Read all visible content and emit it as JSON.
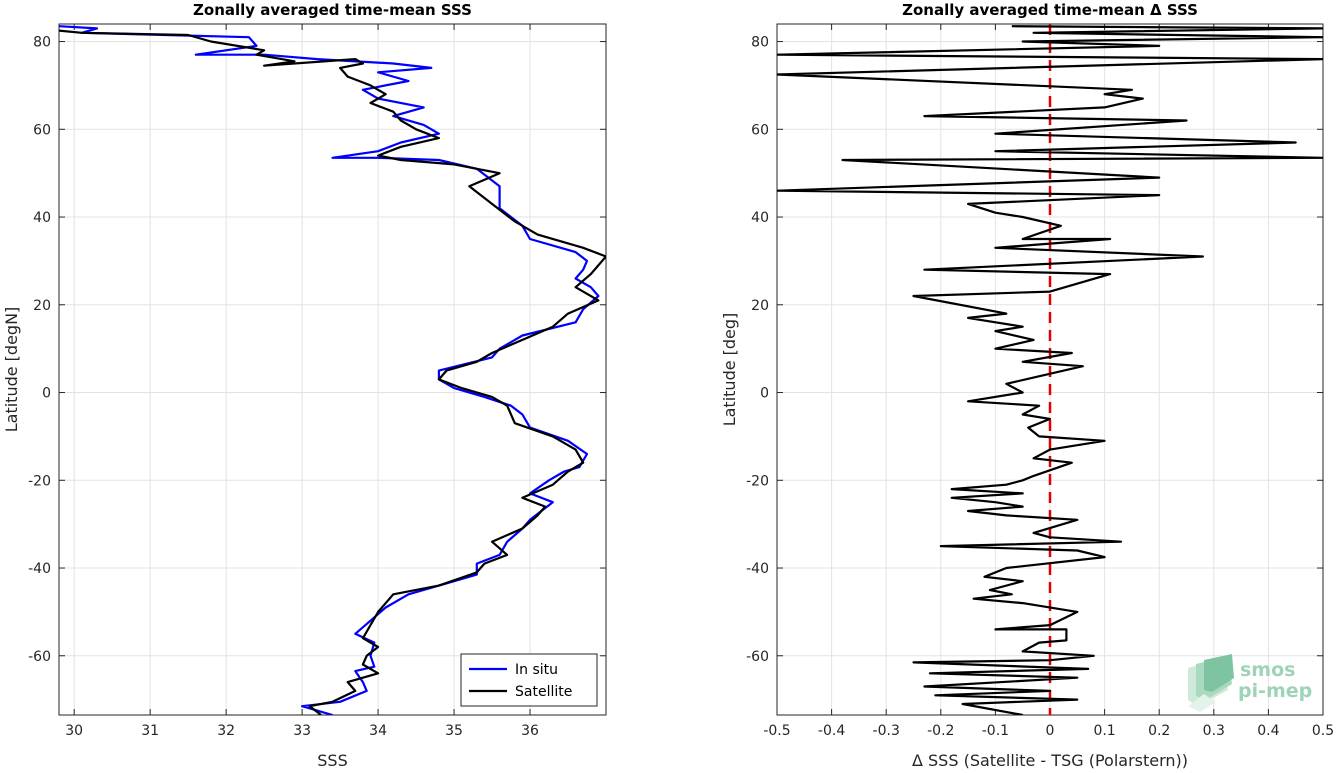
{
  "chart_data": [
    {
      "type": "line",
      "title": "Zonally averaged time-mean SSS",
      "xlabel": "SSS",
      "ylabel": "Latitude [degN]",
      "xlim": [
        29.8,
        37.0
      ],
      "ylim": [
        -73.5,
        84
      ],
      "xticks": [
        30,
        31,
        32,
        33,
        34,
        35,
        36
      ],
      "yticks": [
        80,
        60,
        40,
        20,
        0,
        -20,
        -40,
        -60
      ],
      "grid": true,
      "legend_position": "bottom-right",
      "series": [
        {
          "name": "In situ",
          "color": "#0000ff",
          "points": [
            [
              33.4,
              -73.5
            ],
            [
              33.0,
              -71.5
            ],
            [
              33.5,
              -70.5
            ],
            [
              33.85,
              -68
            ],
            [
              33.8,
              -66
            ],
            [
              33.7,
              -63.5
            ],
            [
              33.95,
              -62.5
            ],
            [
              33.9,
              -60
            ],
            [
              33.95,
              -57
            ],
            [
              33.7,
              -55
            ],
            [
              33.9,
              -52
            ],
            [
              34.1,
              -49
            ],
            [
              34.4,
              -46
            ],
            [
              35.0,
              -43
            ],
            [
              35.3,
              -41.5
            ],
            [
              35.3,
              -39
            ],
            [
              35.6,
              -37
            ],
            [
              35.7,
              -34
            ],
            [
              35.9,
              -31
            ],
            [
              36.0,
              -29
            ],
            [
              36.3,
              -25
            ],
            [
              36.0,
              -23
            ],
            [
              36.25,
              -20
            ],
            [
              36.45,
              -18
            ],
            [
              36.65,
              -17
            ],
            [
              36.75,
              -14
            ],
            [
              36.5,
              -11
            ],
            [
              36.0,
              -8
            ],
            [
              35.9,
              -5
            ],
            [
              35.75,
              -3
            ],
            [
              35.4,
              -1
            ],
            [
              35.0,
              1
            ],
            [
              34.8,
              3
            ],
            [
              34.8,
              5
            ],
            [
              35.5,
              8
            ],
            [
              35.6,
              10
            ],
            [
              35.9,
              13
            ],
            [
              36.6,
              16
            ],
            [
              36.7,
              19
            ],
            [
              36.9,
              22
            ],
            [
              36.8,
              24
            ],
            [
              36.6,
              26
            ],
            [
              36.7,
              28
            ],
            [
              36.75,
              30
            ],
            [
              36.6,
              32
            ],
            [
              36.0,
              35
            ],
            [
              35.9,
              38
            ],
            [
              35.6,
              42
            ],
            [
              35.6,
              47
            ],
            [
              35.3,
              51
            ],
            [
              34.8,
              53
            ],
            [
              34.0,
              53.5
            ],
            [
              33.4,
              53.5
            ],
            [
              34.0,
              55
            ],
            [
              34.3,
              57
            ],
            [
              34.8,
              59
            ],
            [
              34.6,
              61
            ],
            [
              34.2,
              63
            ],
            [
              34.6,
              65
            ],
            [
              34.0,
              67
            ],
            [
              33.8,
              69
            ],
            [
              34.4,
              71
            ],
            [
              34.0,
              73
            ],
            [
              34.7,
              74
            ],
            [
              34.2,
              75
            ],
            [
              33.2,
              76
            ],
            [
              32.5,
              77
            ],
            [
              31.6,
              77
            ],
            [
              32.4,
              79
            ],
            [
              32.3,
              81
            ],
            [
              31.2,
              81.5
            ],
            [
              30.1,
              82
            ],
            [
              30.3,
              83
            ],
            [
              29.8,
              83.5
            ]
          ]
        },
        {
          "name": "Satellite",
          "color": "#000000",
          "points": [
            [
              33.25,
              -73.5
            ],
            [
              33.1,
              -71.5
            ],
            [
              33.4,
              -70.5
            ],
            [
              33.7,
              -68
            ],
            [
              33.6,
              -66
            ],
            [
              34.0,
              -64
            ],
            [
              33.8,
              -62
            ],
            [
              33.85,
              -60
            ],
            [
              34.0,
              -58
            ],
            [
              33.8,
              -56
            ],
            [
              33.9,
              -53
            ],
            [
              34.0,
              -50
            ],
            [
              34.2,
              -46
            ],
            [
              34.8,
              -44
            ],
            [
              35.3,
              -41
            ],
            [
              35.4,
              -39
            ],
            [
              35.7,
              -37
            ],
            [
              35.5,
              -34
            ],
            [
              35.9,
              -31
            ],
            [
              36.1,
              -28
            ],
            [
              36.2,
              -26
            ],
            [
              35.9,
              -24
            ],
            [
              36.3,
              -21
            ],
            [
              36.5,
              -18
            ],
            [
              36.7,
              -16
            ],
            [
              36.6,
              -13
            ],
            [
              36.3,
              -10
            ],
            [
              35.8,
              -7
            ],
            [
              35.7,
              -3
            ],
            [
              35.5,
              -1
            ],
            [
              35.1,
              1
            ],
            [
              34.8,
              3
            ],
            [
              34.9,
              5
            ],
            [
              35.3,
              7
            ],
            [
              35.5,
              9
            ],
            [
              35.9,
              12
            ],
            [
              36.3,
              15
            ],
            [
              36.5,
              18
            ],
            [
              36.9,
              21
            ],
            [
              36.6,
              24
            ],
            [
              36.8,
              27
            ],
            [
              37.0,
              31
            ],
            [
              36.7,
              33
            ],
            [
              36.1,
              36
            ],
            [
              35.8,
              39
            ],
            [
              35.5,
              43
            ],
            [
              35.2,
              47
            ],
            [
              35.6,
              50
            ],
            [
              35.0,
              52
            ],
            [
              34.3,
              53
            ],
            [
              34.0,
              54
            ],
            [
              34.3,
              56
            ],
            [
              34.8,
              58
            ],
            [
              34.5,
              60
            ],
            [
              34.3,
              62
            ],
            [
              34.2,
              64
            ],
            [
              33.9,
              66
            ],
            [
              34.1,
              68
            ],
            [
              33.9,
              70
            ],
            [
              33.6,
              72
            ],
            [
              33.5,
              74
            ],
            [
              33.8,
              75
            ],
            [
              33.7,
              76
            ],
            [
              32.5,
              74.5
            ],
            [
              32.9,
              75.5
            ],
            [
              32.4,
              77
            ],
            [
              32.5,
              78
            ],
            [
              31.8,
              80
            ],
            [
              31.5,
              81.5
            ],
            [
              30.1,
              82
            ],
            [
              29.8,
              82.5
            ]
          ]
        }
      ]
    },
    {
      "type": "line",
      "title": "Zonally averaged time-mean Δ SSS",
      "xlabel": "Δ SSS (Satellite - TSG (Polarstern))",
      "ylabel": "Latitude [deg]",
      "xlim": [
        -0.5,
        0.5
      ],
      "ylim": [
        -73.5,
        84
      ],
      "xticks": [
        "-0.5",
        "-0.4",
        "-0.3",
        "-0.2",
        "-0.1",
        "0",
        "0.1",
        "0.2",
        "0.3",
        "0.4",
        "0.5"
      ],
      "yticks": [
        80,
        60,
        40,
        20,
        0,
        -20,
        -40,
        -60
      ],
      "grid": true,
      "reference_line": {
        "x": 0,
        "color": "#e00000",
        "style": "dashed"
      },
      "series": [
        {
          "name": "",
          "color": "#000000",
          "points": [
            [
              -0.05,
              -73.5
            ],
            [
              -0.16,
              -71
            ],
            [
              0.05,
              -70
            ],
            [
              -0.21,
              -69
            ],
            [
              0.0,
              -68
            ],
            [
              -0.23,
              -67
            ],
            [
              0.05,
              -65
            ],
            [
              -0.22,
              -64
            ],
            [
              0.07,
              -63
            ],
            [
              -0.25,
              -61.5
            ],
            [
              0.0,
              -61
            ],
            [
              0.08,
              -60
            ],
            [
              -0.05,
              -59
            ],
            [
              -0.02,
              -57
            ],
            [
              0.03,
              -56.5
            ],
            [
              0.03,
              -54
            ],
            [
              -0.1,
              -54
            ],
            [
              0.0,
              -53
            ],
            [
              0.05,
              -50
            ],
            [
              -0.05,
              -48
            ],
            [
              -0.14,
              -47
            ],
            [
              -0.07,
              -46
            ],
            [
              -0.11,
              -45
            ],
            [
              -0.05,
              -43
            ],
            [
              -0.12,
              -42
            ],
            [
              -0.08,
              -40
            ],
            [
              0.1,
              -37.5
            ],
            [
              0.05,
              -36
            ],
            [
              -0.2,
              -35
            ],
            [
              0.13,
              -34
            ],
            [
              0.0,
              -33
            ],
            [
              -0.03,
              -32
            ],
            [
              0.05,
              -29
            ],
            [
              -0.08,
              -28
            ],
            [
              -0.15,
              -27
            ],
            [
              -0.05,
              -26
            ],
            [
              -0.1,
              -25
            ],
            [
              -0.18,
              -24
            ],
            [
              -0.05,
              -23
            ],
            [
              -0.18,
              -22
            ],
            [
              -0.08,
              -21
            ],
            [
              -0.05,
              -20
            ],
            [
              -0.03,
              -19
            ],
            [
              0.04,
              -16
            ],
            [
              -0.03,
              -15
            ],
            [
              0.0,
              -13
            ],
            [
              0.1,
              -11
            ],
            [
              -0.02,
              -10
            ],
            [
              -0.04,
              -8
            ],
            [
              0.0,
              -6
            ],
            [
              -0.05,
              -5
            ],
            [
              -0.02,
              -3
            ],
            [
              -0.15,
              -2
            ],
            [
              -0.05,
              0
            ],
            [
              -0.08,
              2
            ],
            [
              0.06,
              6
            ],
            [
              -0.05,
              7
            ],
            [
              0.04,
              9
            ],
            [
              -0.1,
              10
            ],
            [
              -0.03,
              12
            ],
            [
              -0.1,
              14
            ],
            [
              -0.05,
              15
            ],
            [
              -0.15,
              17
            ],
            [
              -0.08,
              18
            ],
            [
              -0.25,
              22
            ],
            [
              0.0,
              23
            ],
            [
              0.11,
              27
            ],
            [
              -0.23,
              28
            ],
            [
              0.28,
              31
            ],
            [
              -0.1,
              33
            ],
            [
              0.11,
              35
            ],
            [
              -0.05,
              35
            ],
            [
              0.02,
              38
            ],
            [
              -0.05,
              40
            ],
            [
              -0.1,
              41
            ],
            [
              -0.15,
              43
            ],
            [
              0.2,
              45
            ],
            [
              -0.5,
              46
            ],
            [
              0.2,
              49
            ],
            [
              -0.38,
              53
            ],
            [
              0.5,
              53.5
            ],
            [
              -0.1,
              55
            ],
            [
              0.45,
              57
            ],
            [
              -0.1,
              59
            ],
            [
              0.25,
              62
            ],
            [
              -0.23,
              63
            ],
            [
              0.1,
              65
            ],
            [
              0.17,
              67
            ],
            [
              0.1,
              68
            ],
            [
              0.15,
              69
            ],
            [
              -0.5,
              72.5
            ],
            [
              0.5,
              76
            ],
            [
              -0.5,
              77
            ],
            [
              0.2,
              79
            ],
            [
              -0.05,
              80
            ],
            [
              0.5,
              81
            ],
            [
              -0.03,
              82
            ],
            [
              0.5,
              83
            ],
            [
              -0.07,
              83.5
            ]
          ]
        }
      ]
    }
  ],
  "logo": {
    "line1": "smos",
    "line2": "pi-mep",
    "color": "#8fcfae"
  }
}
